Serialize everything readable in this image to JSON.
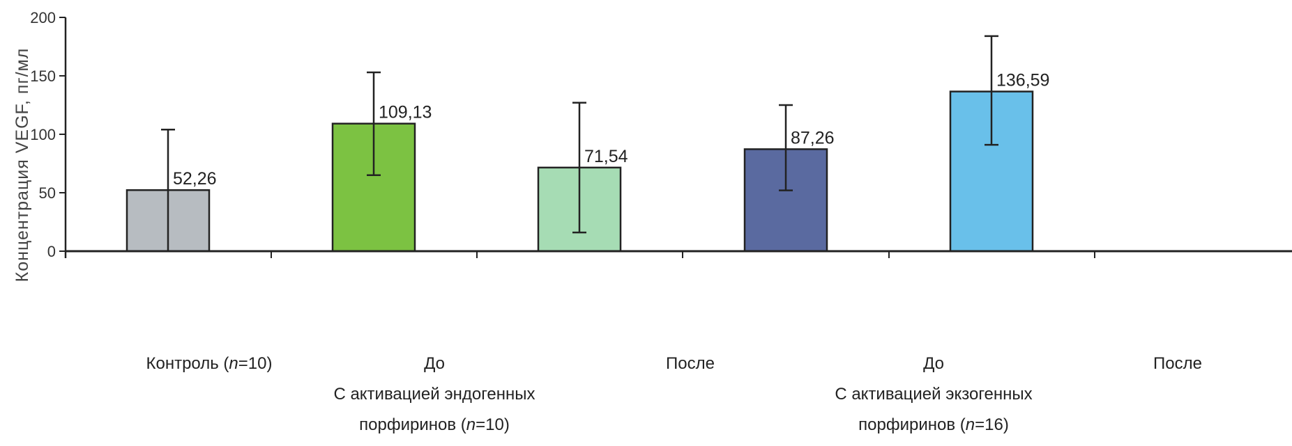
{
  "chart_data": {
    "type": "bar",
    "title": "",
    "xlabel": "",
    "ylabel": "Концентрация VEGF, пг/мл",
    "ylim": [
      0,
      200
    ],
    "yticks": [
      0,
      50,
      100,
      150,
      200
    ],
    "grid": false,
    "error_bars": true,
    "categories": [
      "Контроль (n=10)",
      "До",
      "После",
      "До",
      "После"
    ],
    "group_labels": [
      "С активацией эндогенных порфиринов (n=10)",
      "С активацией экзогенных порфиринов (n=16)"
    ],
    "values": [
      52.26,
      109.13,
      71.54,
      87.26,
      136.59
    ],
    "value_labels": [
      "52,26",
      "109,13",
      "71,54",
      "87,26",
      "136,59"
    ],
    "error_low": [
      0,
      65,
      16,
      52,
      91
    ],
    "error_high": [
      104,
      153,
      127,
      125,
      184
    ],
    "colors": [
      "#b7bcc1",
      "#7cc242",
      "#a6dcb4",
      "#5a6aa0",
      "#69c0ea"
    ]
  },
  "labels": {
    "control": {
      "prefix": "Контроль (",
      "n": "n",
      "suffix": "=10)"
    },
    "endo_before": "До",
    "endo_after": "После",
    "endo_group_line1": "С активацией эндогенных",
    "endo_group_line2": {
      "prefix": "порфиринов (",
      "n": "n",
      "suffix": "=10)"
    },
    "exo_before": "До",
    "exo_after": "После",
    "exo_group_line1": "С активацией экзогенных",
    "exo_group_line2": {
      "prefix": "порфиринов (",
      "n": "n",
      "suffix": "=16)"
    }
  }
}
